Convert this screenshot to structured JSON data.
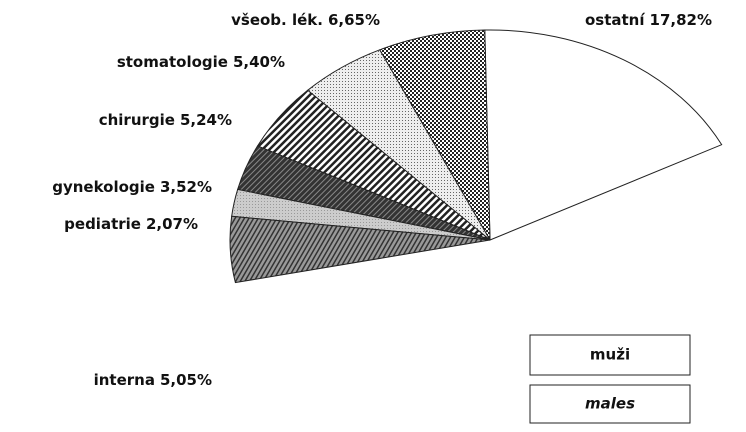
{
  "chart_data": {
    "type": "pie",
    "categories": [
      "ostatní",
      "všeob. lék.",
      "stomatologie",
      "chirurgie",
      "gynekologie",
      "pediatrie",
      "interna"
    ],
    "values": [
      17.82,
      6.65,
      5.4,
      5.24,
      3.52,
      2.07,
      5.05
    ],
    "value_labels": [
      "17,82%",
      "6,65%",
      "5,40%",
      "5,24%",
      "3,52%",
      "2,07%",
      "5,05%"
    ],
    "colors": [
      "#ffffff",
      "#444444",
      "#dddddd",
      "#666666",
      "#555555",
      "#cccccc",
      "#777777"
    ],
    "legend": [
      "muži",
      "males"
    ]
  }
}
